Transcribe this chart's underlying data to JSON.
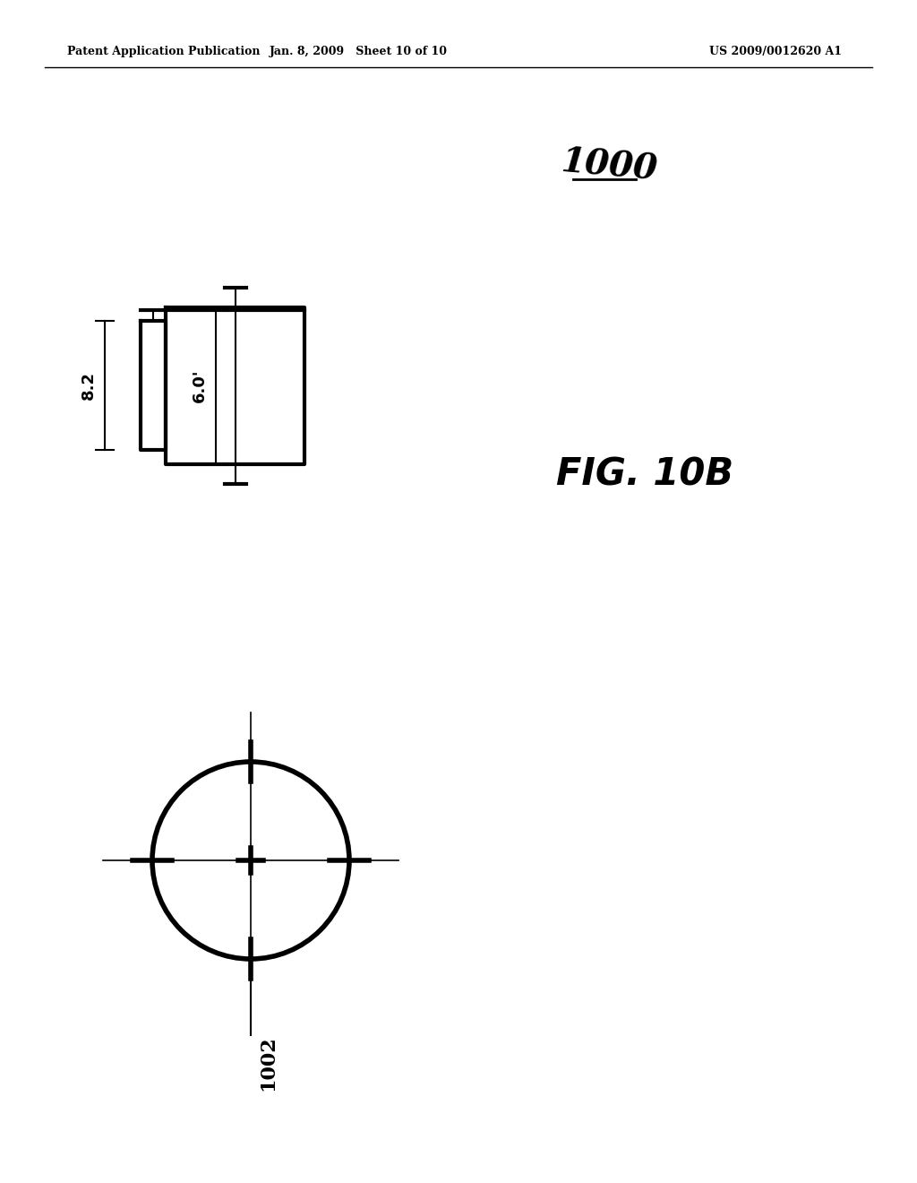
{
  "bg_color": "#ffffff",
  "header_left": "Patent Application Publication",
  "header_mid": "Jan. 8, 2009   Sheet 10 of 10",
  "header_right": "US 2009/0012620 A1",
  "fig_label": "FIG. 10B",
  "ref_1000": "1000",
  "ref_1002": "1002",
  "dim_82": "8.2",
  "dim_60": "6.0'",
  "lw_main": 3.0,
  "lw_dim": 1.5,
  "lw_cross": 1.5
}
